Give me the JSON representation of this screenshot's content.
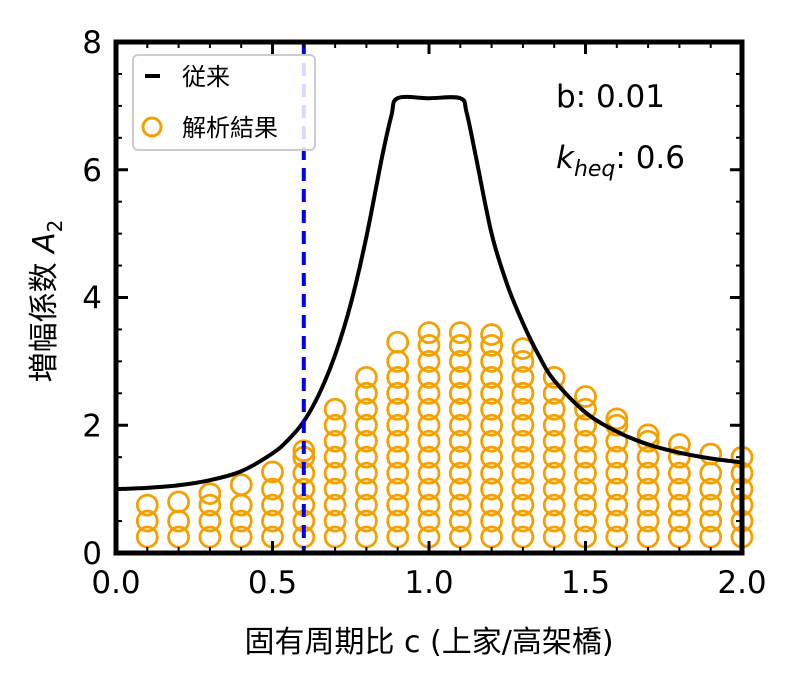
{
  "chart_data": {
    "type": "line+scatter",
    "xlabel": "固有周期比 c (上家/高架橋)",
    "ylabel_main": "増幅係数 ",
    "ylabel_var": "A",
    "ylabel_sub": "2",
    "xlim": [
      0.0,
      2.0
    ],
    "ylim": [
      0,
      8
    ],
    "x_ticks": [
      0.0,
      0.5,
      1.0,
      1.5,
      2.0
    ],
    "x_tick_labels": [
      "0.0",
      "0.5",
      "1.0",
      "1.5",
      "2.0"
    ],
    "y_ticks": [
      0,
      2,
      4,
      6,
      8
    ],
    "y_tick_labels": [
      "0",
      "2",
      "4",
      "6",
      "8"
    ],
    "grid": false,
    "legend_position": "top-left",
    "annotations": {
      "b_label": "b: 0.01",
      "k_base": "k",
      "k_sub": "heq",
      "k_value": ": 0.6"
    },
    "vline": {
      "x": 0.6,
      "color": "#0000ee",
      "style": "dashed"
    },
    "series": [
      {
        "name": "従来",
        "kind": "line",
        "color": "#000000",
        "x": [
          0.0,
          0.1,
          0.2,
          0.3,
          0.4,
          0.5,
          0.55,
          0.6,
          0.65,
          0.7,
          0.75,
          0.8,
          0.85,
          0.88,
          0.9,
          1.0,
          1.1,
          1.12,
          1.15,
          1.2,
          1.25,
          1.3,
          1.35,
          1.4,
          1.5,
          1.6,
          1.7,
          1.8,
          1.9,
          2.0
        ],
        "y": [
          1.0,
          1.02,
          1.06,
          1.14,
          1.28,
          1.56,
          1.77,
          2.06,
          2.5,
          3.1,
          3.9,
          4.95,
          6.2,
          6.85,
          7.12,
          7.12,
          7.12,
          6.9,
          6.2,
          5.0,
          4.2,
          3.6,
          3.1,
          2.7,
          2.2,
          1.9,
          1.7,
          1.57,
          1.48,
          1.42
        ]
      },
      {
        "name": "解析結果",
        "kind": "scatter",
        "color": "#f5a000",
        "columns": [
          {
            "x": 0.1,
            "ymax": 0.75
          },
          {
            "x": 0.2,
            "ymax": 0.8
          },
          {
            "x": 0.3,
            "ymax": 0.93
          },
          {
            "x": 0.4,
            "ymax": 1.07
          },
          {
            "x": 0.5,
            "ymax": 1.27
          },
          {
            "x": 0.6,
            "ymax": 1.6
          },
          {
            "x": 0.7,
            "ymax": 2.25
          },
          {
            "x": 0.8,
            "ymax": 2.75
          },
          {
            "x": 0.9,
            "ymax": 3.3
          },
          {
            "x": 1.0,
            "ymax": 3.45
          },
          {
            "x": 1.1,
            "ymax": 3.45
          },
          {
            "x": 1.2,
            "ymax": 3.42
          },
          {
            "x": 1.3,
            "ymax": 3.2
          },
          {
            "x": 1.4,
            "ymax": 2.75
          },
          {
            "x": 1.5,
            "ymax": 2.45
          },
          {
            "x": 1.6,
            "ymax": 2.1
          },
          {
            "x": 1.7,
            "ymax": 1.85
          },
          {
            "x": 1.8,
            "ymax": 1.7
          },
          {
            "x": 1.9,
            "ymax": 1.55
          },
          {
            "x": 2.0,
            "ymax": 1.5
          }
        ]
      }
    ]
  }
}
